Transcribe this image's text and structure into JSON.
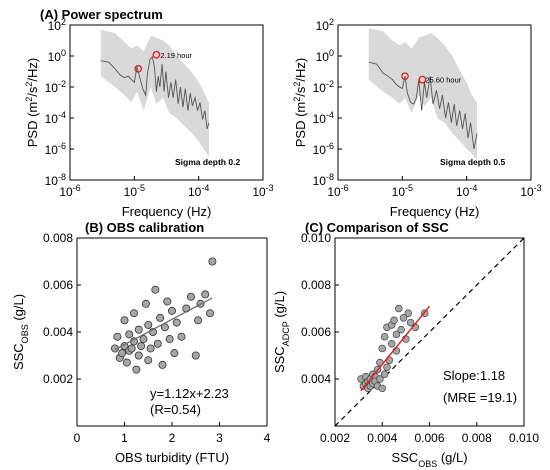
{
  "figure": {
    "colors": {
      "band": "#d9d9d9",
      "line": "#555555",
      "marker_edge": "#e31a1c",
      "scatter_fill": "#a6a6a6",
      "fit_red": "#e31a1c",
      "fit_gray": "#6e6e6e"
    }
  },
  "chart_data": [
    {
      "id": "A1",
      "type": "line",
      "panel_title": "(A) Power spectrum",
      "xlabel": "Frequency (Hz)",
      "ylabel_parts": [
        "PSD (m",
        "2",
        "/s",
        "2",
        "/Hz)"
      ],
      "xscale": "log",
      "yscale": "log",
      "xlim": [
        1e-06,
        0.001
      ],
      "ylim": [
        1e-08,
        100
      ],
      "xticks": [
        1e-06,
        1e-05,
        0.0001,
        0.001
      ],
      "xtick_labels": [
        [
          "10",
          "-6"
        ],
        [
          "10",
          "-5"
        ],
        [
          "10",
          "-4"
        ],
        [
          "10",
          "-3"
        ]
      ],
      "yticks": [
        1e-08,
        1e-06,
        0.0001,
        0.01,
        1,
        100
      ],
      "ytick_labels": [
        [
          "10",
          "-8"
        ],
        [
          "10",
          "-6"
        ],
        [
          "10",
          "-4"
        ],
        [
          "10",
          "-2"
        ],
        [
          "10",
          "0"
        ],
        [
          "10",
          "2"
        ]
      ],
      "note": "Sigma depth 0.2",
      "annotation": "2.19 hour",
      "series": [
        {
          "role": "mean",
          "x": [
            3e-06,
            4e-06,
            5e-06,
            6e-06,
            7e-06,
            8e-06,
            9e-06,
            1e-05,
            1.1e-05,
            1.2e-05,
            1.35e-05,
            1.5e-05,
            1.6e-05,
            1.75e-05,
            1.9e-05,
            2.05e-05,
            2.2e-05,
            2.35e-05,
            2.5e-05,
            2.7e-05,
            2.9e-05,
            3.1e-05,
            3.4e-05,
            3.7e-05,
            4e-05,
            4.4e-05,
            4.8e-05,
            5.2e-05,
            5.7e-05,
            6.2e-05,
            6.8e-05,
            7.4e-05,
            8e-05,
            8.8e-05,
            9.6e-05,
            0.000105,
            0.000115,
            0.000125,
            0.000135,
            0.000145
          ],
          "y": [
            0.5,
            0.4,
            0.15,
            0.06,
            0.04,
            0.05,
            0.03,
            0.02,
            0.2,
            0.05,
            0.008,
            0.003,
            0.08,
            0.6,
            0.9,
            0.2,
            0.005,
            0.05,
            0.01,
            0.3,
            0.005,
            0.1,
            0.002,
            0.02,
            0.002,
            0.03,
            0.0008,
            0.01,
            0.0005,
            0.008,
            0.0003,
            0.004,
            0.0006,
            0.002,
            0.0003,
            0.001,
            8e-05,
            0.0003,
            2e-05,
            5e-05
          ]
        },
        {
          "role": "band",
          "x": [
            3e-06,
            5e-06,
            7e-06,
            9e-06,
            1.1e-05,
            1.4e-05,
            1.8e-05,
            2.2e-05,
            2.8e-05,
            3.5e-05,
            4.5e-05,
            6e-05,
            8e-05,
            0.0001,
            0.00012,
            0.000145
          ],
          "upper": [
            50,
            30,
            8,
            3,
            5,
            2,
            20,
            15,
            10,
            5,
            1,
            0.3,
            0.08,
            0.02,
            0.005,
            0.001
          ],
          "lower": [
            0.05,
            0.01,
            0.003,
            0.001,
            0.005,
            0.0003,
            0.01,
            0.0008,
            0.002,
            0.0002,
            0.0001,
            3e-05,
            1e-05,
            3e-06,
            1e-06,
            3e-07
          ]
        },
        {
          "role": "markers",
          "x": [
            1.15e-05,
            2.2e-05
          ],
          "y": [
            0.15,
            1.2
          ]
        }
      ]
    },
    {
      "id": "A2",
      "type": "line",
      "xlabel": "Frequency (Hz)",
      "ylabel_parts": [
        "PSD (m",
        "2",
        "/s",
        "2",
        "/Hz)"
      ],
      "xscale": "log",
      "yscale": "log",
      "xlim": [
        1e-06,
        0.001
      ],
      "ylim": [
        1e-08,
        100
      ],
      "xticks": [
        1e-06,
        1e-05,
        0.0001,
        0.001
      ],
      "xtick_labels": [
        [
          "10",
          "-6"
        ],
        [
          "10",
          "-5"
        ],
        [
          "10",
          "-4"
        ],
        [
          "10",
          "-3"
        ]
      ],
      "yticks": [
        1e-08,
        1e-06,
        0.0001,
        0.01,
        1,
        100
      ],
      "ytick_labels": [
        [
          "10",
          "-8"
        ],
        [
          "10",
          "-6"
        ],
        [
          "10",
          "-4"
        ],
        [
          "10",
          "-2"
        ],
        [
          "10",
          "0"
        ],
        [
          "10",
          "2"
        ]
      ],
      "note": "Sigma depth 0.5",
      "annotation": "25.60 hour",
      "series": [
        {
          "role": "mean",
          "x": [
            3e-06,
            4e-06,
            5e-06,
            6e-06,
            7e-06,
            8e-06,
            9e-06,
            1e-05,
            1.1e-05,
            1.2e-05,
            1.35e-05,
            1.5e-05,
            1.65e-05,
            1.8e-05,
            2e-05,
            2.2e-05,
            2.4e-05,
            2.7e-05,
            3e-05,
            3.4e-05,
            3.8e-05,
            4.2e-05,
            4.7e-05,
            5.2e-05,
            5.8e-05,
            6.4e-05,
            7e-05,
            7.8e-05,
            8.6e-05,
            9.5e-05,
            0.000105,
            0.000115,
            0.00013,
            0.000145
          ],
          "y": [
            0.4,
            0.3,
            0.08,
            0.05,
            0.03,
            0.015,
            0.01,
            0.008,
            0.05,
            0.004,
            0.001,
            0.0008,
            0.002,
            0.03,
            0.0003,
            0.02,
            0.002,
            0.05,
            0.0008,
            0.006,
            0.0004,
            0.003,
            0.0001,
            0.001,
            5e-05,
            0.0008,
            3e-05,
            0.0003,
            2e-05,
            0.0002,
            5e-06,
            5e-05,
            1e-06,
            1e-05
          ]
        },
        {
          "role": "band",
          "x": [
            3e-06,
            5e-06,
            7e-06,
            9e-06,
            1.1e-05,
            1.4e-05,
            1.8e-05,
            2.2e-05,
            2.8e-05,
            3.5e-05,
            4.5e-05,
            6e-05,
            8e-05,
            0.0001,
            0.00012,
            0.000145
          ],
          "upper": [
            60,
            40,
            10,
            5,
            8,
            3,
            15,
            20,
            30,
            15,
            5,
            1,
            0.1,
            0.02,
            0.003,
            0.001
          ],
          "lower": [
            0.03,
            0.005,
            0.002,
            0.0008,
            0.002,
            0.0002,
            0.003,
            0.0006,
            0.002,
            0.0001,
            5e-05,
            1e-05,
            3e-06,
            1e-06,
            5e-07,
            2e-07
          ]
        },
        {
          "role": "markers",
          "x": [
            1.1e-05,
            2.05e-05
          ],
          "y": [
            0.05,
            0.03
          ]
        }
      ]
    },
    {
      "id": "B",
      "type": "scatter",
      "panel_title": "(B) OBS calibration",
      "xlabel": "OBS turbidity (FTU)",
      "ylabel_parts": [
        "SSC",
        "OBS",
        " (g/L)"
      ],
      "xlim": [
        0,
        4
      ],
      "ylim": [
        0,
        0.008
      ],
      "xticks": [
        0,
        1,
        2,
        3,
        4
      ],
      "xtick_labels": [
        "0",
        "1",
        "2",
        "3",
        "4"
      ],
      "yticks": [
        0.002,
        0.004,
        0.006,
        0.008
      ],
      "ytick_labels": [
        "0.002",
        "0.004",
        "0.006",
        "0.008"
      ],
      "fit_label": "y=1.12x+2.23",
      "r_label": "(R=0.54)",
      "fit_line": {
        "x": [
          0.8,
          2.85
        ],
        "y": [
          0.00325,
          0.00545
        ]
      },
      "points": {
        "x": [
          0.8,
          0.85,
          0.9,
          0.95,
          1.0,
          1.0,
          1.05,
          1.1,
          1.1,
          1.15,
          1.2,
          1.2,
          1.25,
          1.3,
          1.3,
          1.35,
          1.4,
          1.45,
          1.5,
          1.5,
          1.55,
          1.6,
          1.65,
          1.7,
          1.75,
          1.8,
          1.85,
          1.9,
          1.95,
          2.0,
          2.05,
          2.1,
          2.2,
          2.3,
          2.4,
          2.5,
          2.55,
          2.6,
          2.7,
          2.8,
          2.85
        ],
        "y": [
          0.0033,
          0.0038,
          0.0029,
          0.0031,
          0.0034,
          0.0045,
          0.0027,
          0.0032,
          0.0039,
          0.0033,
          0.0036,
          0.0048,
          0.0024,
          0.003,
          0.0041,
          0.0034,
          0.0037,
          0.0052,
          0.0028,
          0.0043,
          0.0033,
          0.004,
          0.0058,
          0.0035,
          0.0046,
          0.0026,
          0.0042,
          0.0053,
          0.0037,
          0.0049,
          0.0031,
          0.0044,
          0.0038,
          0.005,
          0.0055,
          0.003,
          0.0045,
          0.0052,
          0.0056,
          0.0048,
          0.007
        ]
      }
    },
    {
      "id": "C",
      "type": "scatter",
      "panel_title": "(C) Comparison of SSC",
      "xlabel_parts": [
        "SSC",
        "OBS",
        " (g/L)"
      ],
      "ylabel_parts": [
        "SSC",
        "ADCP",
        " (g/L)"
      ],
      "xlim": [
        0.002,
        0.01
      ],
      "ylim": [
        0.002,
        0.01
      ],
      "xticks": [
        0.002,
        0.004,
        0.006,
        0.008,
        0.01
      ],
      "xtick_labels": [
        "0.002",
        "0.004",
        "0.006",
        "0.008",
        "0.010"
      ],
      "yticks": [
        0.004,
        0.006,
        0.008,
        0.01
      ],
      "ytick_labels": [
        "0.004",
        "0.006",
        "0.008",
        "0.010"
      ],
      "slope_label": "Slope:1.18",
      "mre_label": "(MRE =19.1)",
      "fit_line": {
        "x": [
          0.0031,
          0.006
        ],
        "y": [
          0.0035,
          0.0071
        ]
      },
      "diag_line": {
        "x": [
          0.002,
          0.01
        ],
        "y": [
          0.002,
          0.01
        ]
      },
      "points": {
        "x": [
          0.0031,
          0.0032,
          0.0033,
          0.0033,
          0.0034,
          0.0034,
          0.0035,
          0.0035,
          0.0036,
          0.0036,
          0.0037,
          0.0037,
          0.0038,
          0.0038,
          0.0039,
          0.0039,
          0.004,
          0.004,
          0.0041,
          0.0041,
          0.0042,
          0.0042,
          0.0043,
          0.0044,
          0.0044,
          0.0045,
          0.0046,
          0.0046,
          0.0047,
          0.0048,
          0.0049,
          0.005,
          0.0051,
          0.0052,
          0.0054,
          0.0058
        ],
        "y": [
          0.004,
          0.0037,
          0.0038,
          0.0041,
          0.0036,
          0.0039,
          0.004,
          0.0037,
          0.0042,
          0.0038,
          0.0041,
          0.0039,
          0.0037,
          0.0044,
          0.004,
          0.0047,
          0.0036,
          0.0053,
          0.0042,
          0.0058,
          0.0045,
          0.0062,
          0.0048,
          0.0055,
          0.0063,
          0.0065,
          0.0052,
          0.0059,
          0.007,
          0.0061,
          0.0066,
          0.0057,
          0.0068,
          0.0064,
          0.0062,
          0.0068
        ]
      }
    }
  ]
}
